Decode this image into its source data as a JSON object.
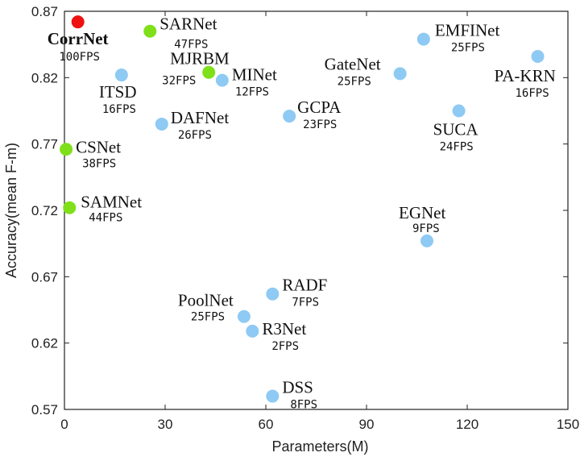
{
  "chart_data": {
    "type": "scatter",
    "title": "",
    "xlabel": "Parameters(M)",
    "ylabel": "Accuracy(mean F-m)",
    "xlim": [
      0,
      150
    ],
    "ylim": [
      0.57,
      0.87
    ],
    "xticks": [
      0,
      30,
      60,
      90,
      120,
      150
    ],
    "yticks": [
      0.57,
      0.62,
      0.67,
      0.72,
      0.77,
      0.82,
      0.87
    ],
    "ytick_labels": [
      "0.57",
      "0.62",
      "0.67",
      "0.72",
      "0.77",
      "0.82",
      "0.87"
    ],
    "grid": false,
    "colors": {
      "ours": "#ee1111",
      "lightweight": "#7fe01a",
      "other": "#8ecaf3"
    },
    "points": [
      {
        "name": "CorrNet",
        "fps": "100FPS",
        "x": 4,
        "y": 0.862,
        "group": "ours"
      },
      {
        "name": "SARNet",
        "fps": "47FPS",
        "x": 25.5,
        "y": 0.855,
        "group": "lightweight"
      },
      {
        "name": "MJRBM",
        "fps": "32FPS",
        "x": 43,
        "y": 0.824,
        "group": "lightweight"
      },
      {
        "name": "CSNet",
        "fps": "38FPS",
        "x": 0.5,
        "y": 0.766,
        "group": "lightweight"
      },
      {
        "name": "SAMNet",
        "fps": "44FPS",
        "x": 1.5,
        "y": 0.722,
        "group": "lightweight"
      },
      {
        "name": "ITSD",
        "fps": "16FPS",
        "x": 17,
        "y": 0.822,
        "group": "other"
      },
      {
        "name": "MINet",
        "fps": "12FPS",
        "x": 47,
        "y": 0.818,
        "group": "other"
      },
      {
        "name": "DAFNet",
        "fps": "26FPS",
        "x": 29,
        "y": 0.785,
        "group": "other"
      },
      {
        "name": "GCPA",
        "fps": "23FPS",
        "x": 67,
        "y": 0.791,
        "group": "other"
      },
      {
        "name": "GateNet",
        "fps": "25FPS",
        "x": 100,
        "y": 0.823,
        "group": "other"
      },
      {
        "name": "EMFINet",
        "fps": "25FPS",
        "x": 107,
        "y": 0.849,
        "group": "other"
      },
      {
        "name": "PA-KRN",
        "fps": "16FPS",
        "x": 141,
        "y": 0.836,
        "group": "other"
      },
      {
        "name": "SUCA",
        "fps": "24FPS",
        "x": 117.5,
        "y": 0.795,
        "group": "other"
      },
      {
        "name": "EGNet",
        "fps": "9FPS",
        "x": 108,
        "y": 0.697,
        "group": "other"
      },
      {
        "name": "PoolNet",
        "fps": "25FPS",
        "x": 53.5,
        "y": 0.64,
        "group": "other"
      },
      {
        "name": "RADF",
        "fps": "7FPS",
        "x": 62,
        "y": 0.657,
        "group": "other"
      },
      {
        "name": "R3Net",
        "fps": "2FPS",
        "x": 56,
        "y": 0.629,
        "group": "other"
      },
      {
        "name": "DSS",
        "fps": "8FPS",
        "x": 62,
        "y": 0.58,
        "group": "other"
      }
    ]
  }
}
